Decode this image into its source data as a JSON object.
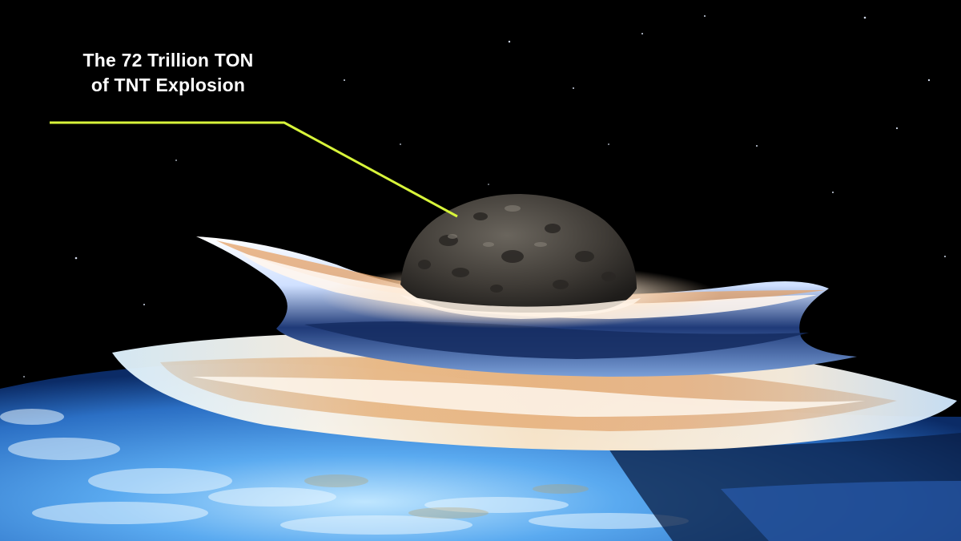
{
  "annotation": {
    "line1": "The 72 Trillion TON",
    "line2": "of TNT Explosion",
    "leader_color": "#d8f53a"
  },
  "image": {
    "description_icon": "asteroid-impact-illustration",
    "colors": {
      "space": "#000000",
      "earth_ocean": "#3f8fe0",
      "shockwave_bright": "#fff3e6",
      "shockwave_orange": "#e8a25a",
      "shockwave_blue": "#2b4a8a",
      "asteroid": "#4a4640"
    }
  }
}
